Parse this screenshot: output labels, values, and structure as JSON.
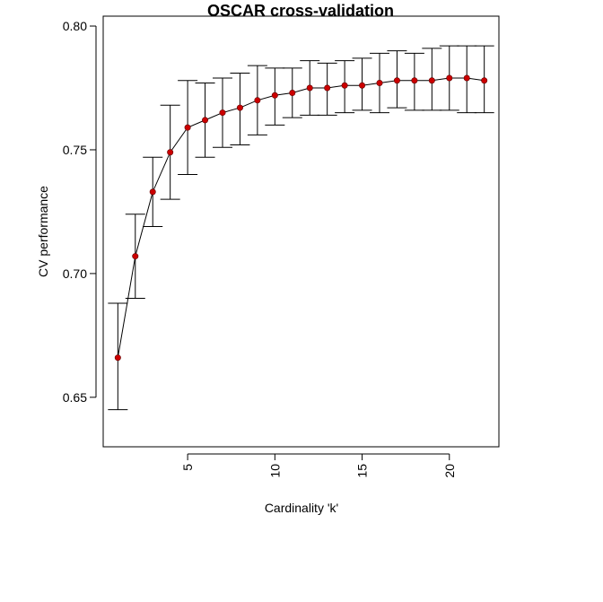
{
  "chart_data": {
    "type": "line",
    "title": "OSCAR cross-validation",
    "xlabel": "Cardinality 'k'",
    "ylabel": "CV performance",
    "xlim": [
      0.16,
      22.84
    ],
    "ylim": [
      0.63,
      0.804
    ],
    "xticks": [
      5,
      10,
      15,
      20
    ],
    "yticks": [
      0.65,
      0.7,
      0.75,
      0.8
    ],
    "x_tick_labels": [
      "5",
      "10",
      "15",
      "20"
    ],
    "y_tick_labels": [
      "0.65",
      "0.70",
      "0.75",
      "0.80"
    ],
    "legend": "none",
    "grid": false,
    "point_color": "#cc0000",
    "line_color": "#000000",
    "series": [
      {
        "x": [
          1,
          2,
          3,
          4,
          5,
          6,
          7,
          8,
          9,
          10,
          11,
          12,
          13,
          14,
          15,
          16,
          17,
          18,
          19,
          20,
          21,
          22
        ],
        "values": [
          0.666,
          0.707,
          0.733,
          0.749,
          0.759,
          0.762,
          0.765,
          0.767,
          0.77,
          0.772,
          0.773,
          0.775,
          0.775,
          0.776,
          0.776,
          0.777,
          0.778,
          0.778,
          0.778,
          0.779,
          0.779,
          0.778
        ],
        "lower": [
          0.645,
          0.69,
          0.719,
          0.73,
          0.74,
          0.747,
          0.751,
          0.752,
          0.756,
          0.76,
          0.763,
          0.764,
          0.764,
          0.765,
          0.766,
          0.765,
          0.767,
          0.766,
          0.766,
          0.766,
          0.765,
          0.765
        ],
        "upper": [
          0.688,
          0.724,
          0.747,
          0.768,
          0.778,
          0.777,
          0.779,
          0.781,
          0.784,
          0.783,
          0.783,
          0.786,
          0.785,
          0.786,
          0.787,
          0.789,
          0.79,
          0.789,
          0.791,
          0.792,
          0.792,
          0.792
        ]
      }
    ]
  }
}
